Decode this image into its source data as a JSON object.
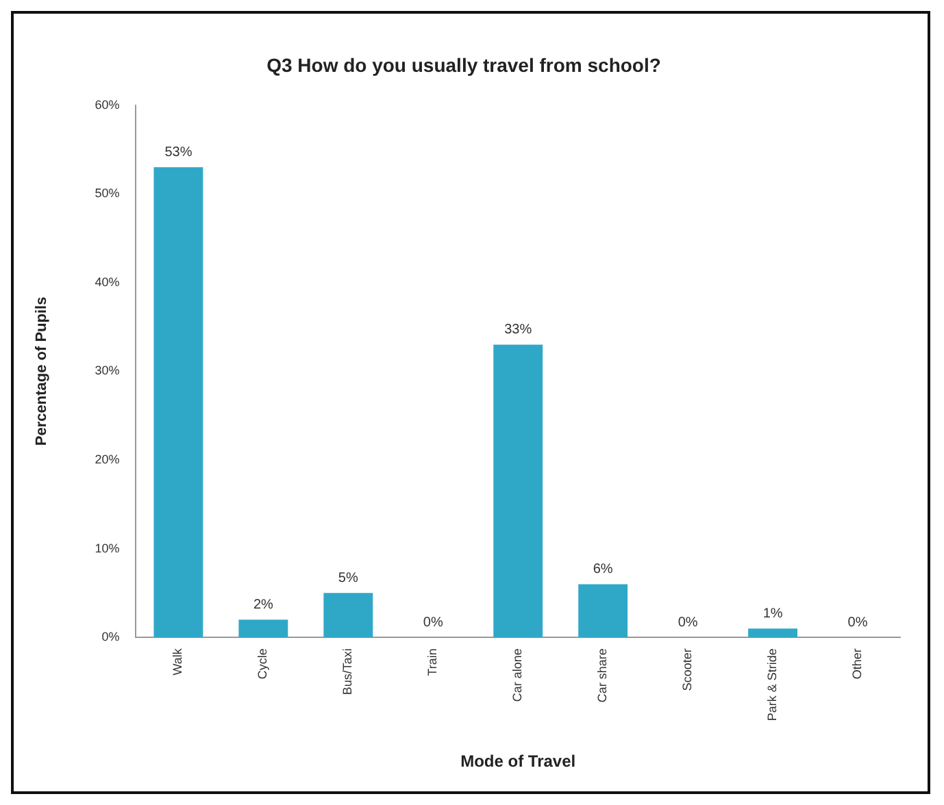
{
  "chart_data": {
    "type": "bar",
    "title": "Q3 How do you usually travel from school?",
    "xlabel": "Mode of Travel",
    "ylabel": "Percentage of Pupils",
    "categories": [
      "Walk",
      "Cycle",
      "Bus/Taxi",
      "Train",
      "Car alone",
      "Car share",
      "Scooter",
      "Park & Stride",
      "Other"
    ],
    "values": [
      53,
      2,
      5,
      0,
      33,
      6,
      0,
      1,
      0
    ],
    "value_labels": [
      "53%",
      "2%",
      "5%",
      "0%",
      "33%",
      "6%",
      "0%",
      "1%",
      "0%"
    ],
    "color": "#2fa8c8",
    "ylim": [
      0,
      60
    ],
    "yticks": [
      {
        "value": 0,
        "label": "0%"
      },
      {
        "value": 10,
        "label": "10%"
      },
      {
        "value": 20,
        "label": "20%"
      },
      {
        "value": 30,
        "label": "30%"
      },
      {
        "value": 40,
        "label": "40%"
      },
      {
        "value": 50,
        "label": "50%"
      },
      {
        "value": 60,
        "label": "60%"
      }
    ],
    "grid": false,
    "legend": false
  }
}
